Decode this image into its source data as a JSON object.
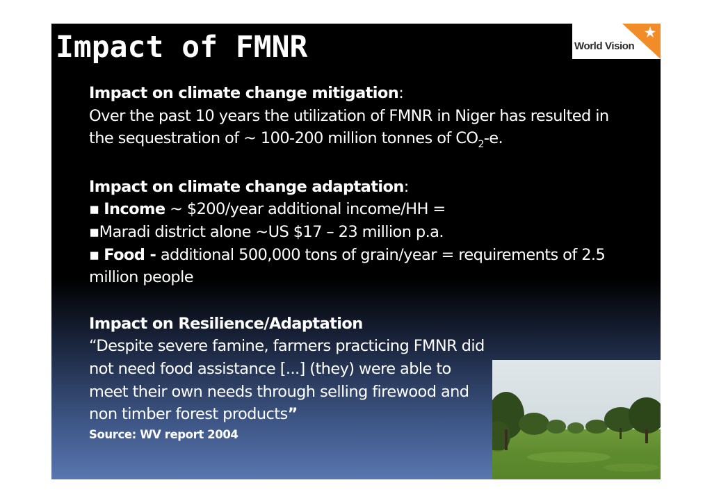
{
  "slide": {
    "title": "Impact of FMNR",
    "logo_text": "World Vision",
    "mitigation": {
      "heading": "Impact on climate change mitigation",
      "colon": ":",
      "line1": "Over the past 10 years the utilization of FMNR in Niger has resulted in",
      "line2_pre": "the sequestration of ~ 100-200 million tonnes of CO",
      "line2_sub": "2",
      "line2_post": "-e."
    },
    "adaptation": {
      "heading": "Impact on climate change adaptation",
      "colon": ":",
      "bullet": "▪",
      "income_label": "Income",
      "income_text": " ~ $200/year additional income/HH  =",
      "maradi_text": "Maradi district alone ~US $17 – 23 million p.a.",
      "food_label": "Food -",
      "food_text": " additional 500,000 tons of grain/year  = requirements of 2.5 million people"
    },
    "resilience": {
      "heading": "Impact on Resilience/Adaptation",
      "quote": "“Despite severe famine, farmers practicing FMNR did not need food assistance [...] (they) were able to meet their own needs through selling firewood and non timber forest products",
      "quote_end": "”",
      "source": "Source: WV report 2004"
    },
    "colors": {
      "background_top": "#000000",
      "background_bottom": "#5a76b0",
      "logo_orange": "#f28c28"
    },
    "photo_icon": "savanna-landscape-photo"
  }
}
